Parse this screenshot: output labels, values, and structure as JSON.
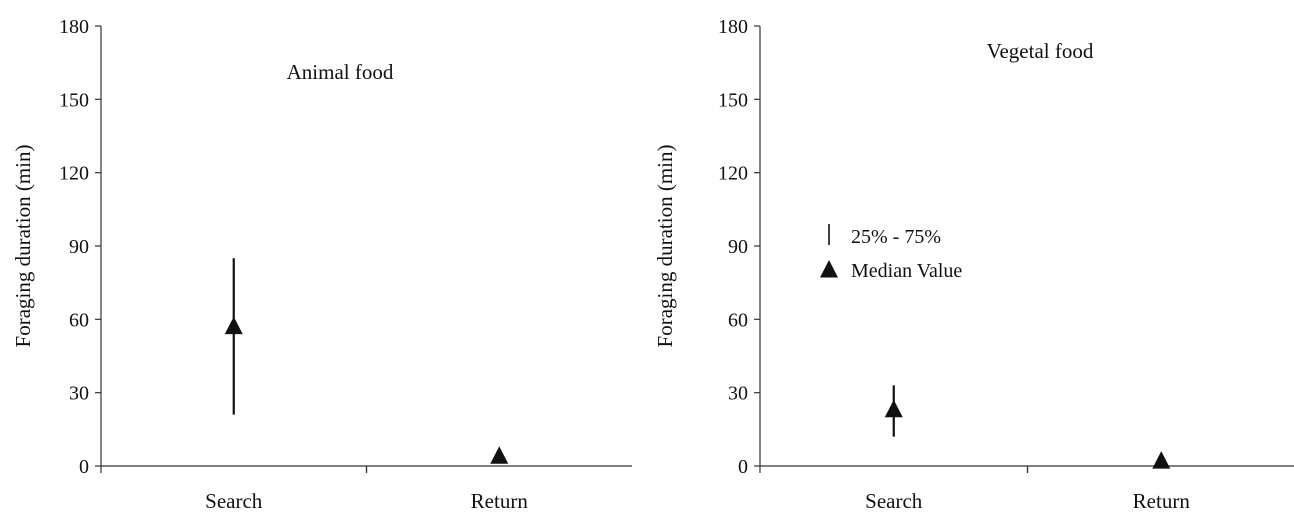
{
  "chart_data": [
    {
      "type": "scatter",
      "title": "Animal food",
      "ylabel": "Foraging duration (min)",
      "xlabel": "",
      "categories": [
        "Search",
        "Return"
      ],
      "ylim": [
        0,
        180
      ],
      "yticks": [
        0,
        30,
        60,
        90,
        120,
        150,
        180
      ],
      "median": [
        57,
        4
      ],
      "q25": [
        21,
        null
      ],
      "q75": [
        85,
        null
      ],
      "grid": false
    },
    {
      "type": "scatter",
      "title": "Vegetal food",
      "ylabel": "Foraging duration (min)",
      "xlabel": "",
      "categories": [
        "Search",
        "Return"
      ],
      "ylim": [
        0,
        180
      ],
      "yticks": [
        0,
        30,
        60,
        90,
        120,
        150,
        180
      ],
      "median": [
        23,
        2
      ],
      "q25": [
        12,
        null
      ],
      "q75": [
        33,
        null
      ],
      "grid": false,
      "legend": {
        "position": "left-middle",
        "entries": [
          {
            "symbol": "line",
            "label": "25% - 75%"
          },
          {
            "symbol": "triangle",
            "label": "Median Value"
          }
        ]
      }
    }
  ]
}
